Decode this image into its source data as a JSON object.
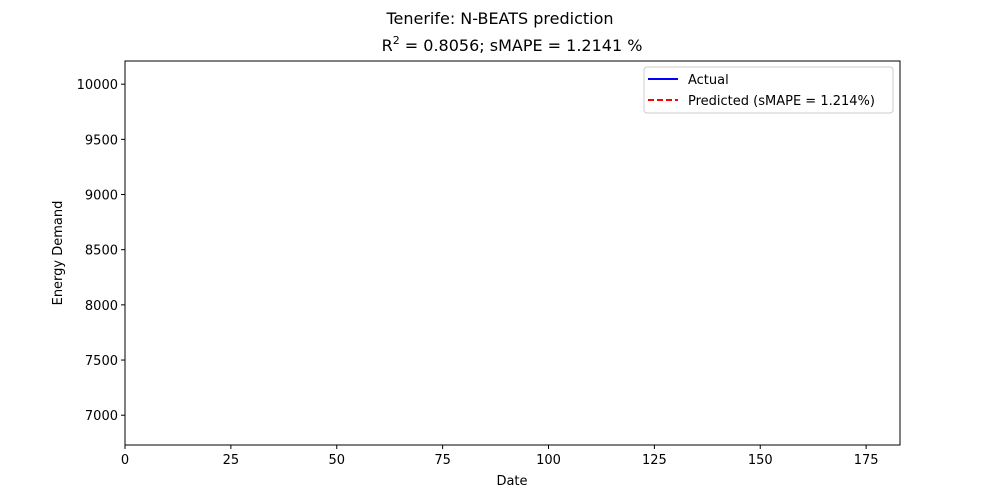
{
  "chart_data": {
    "type": "line",
    "suptitle": "Tenerife: N-BEATS prediction",
    "title": {
      "r_label": "R",
      "r_exponent": "2",
      "rest": " = 0.8056; sMAPE = 1.2141 %"
    },
    "xlabel": "Date",
    "ylabel": "Energy Demand",
    "xlim": [
      0,
      183
    ],
    "ylim": [
      6730,
      10210
    ],
    "xticks": [
      0,
      25,
      50,
      75,
      100,
      125,
      150,
      175
    ],
    "yticks": [
      7000,
      7500,
      8000,
      8500,
      9000,
      9500,
      10000
    ],
    "grid": false,
    "legend_position": "upper-right",
    "series": [
      {
        "name": "Actual",
        "color": "#0000ff",
        "style": "solid",
        "values": []
      },
      {
        "name": "Predicted (sMAPE = 1.214%)",
        "color": "#ff0000",
        "style": "dashed",
        "values": []
      }
    ]
  }
}
